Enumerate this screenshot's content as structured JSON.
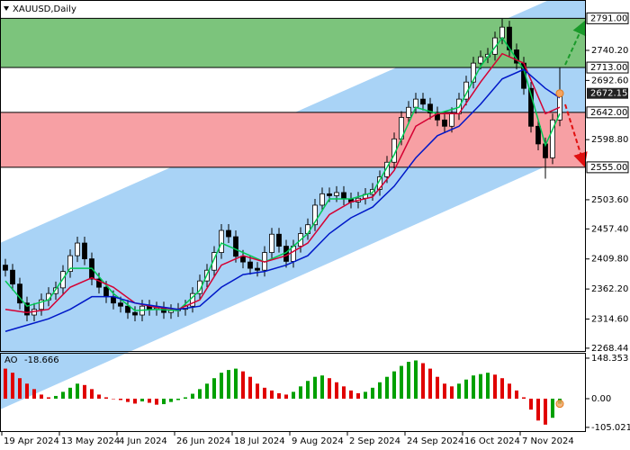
{
  "chart_data": [
    {
      "type": "candlestick",
      "title": "XAUUSD,Daily",
      "open": [
        2400,
        2392,
        2370,
        2340,
        2321,
        2330,
        2345,
        2355,
        2364,
        2390,
        2415,
        2435,
        2410,
        2378,
        2365,
        2350,
        2340,
        2335,
        2325,
        2321,
        2335,
        2330,
        2332,
        2325,
        2328,
        2330,
        2335,
        2355,
        2375,
        2392,
        2420,
        2455,
        2445,
        2414,
        2405,
        2395,
        2392,
        2420,
        2449,
        2430,
        2406,
        2430,
        2450,
        2464,
        2495,
        2513,
        2510,
        2515,
        2505,
        2500,
        2506,
        2512,
        2520,
        2540,
        2563,
        2600,
        2634,
        2650,
        2663,
        2655,
        2641,
        2630,
        2620,
        2640,
        2663,
        2690,
        2720,
        2730,
        2734,
        2760,
        2777,
        2741,
        2720,
        2680,
        2620,
        2592,
        2570,
        2630
      ],
      "high": [
        2410,
        2402,
        2380,
        2350,
        2340,
        2355,
        2365,
        2374,
        2400,
        2425,
        2445,
        2445,
        2420,
        2388,
        2375,
        2360,
        2350,
        2345,
        2335,
        2345,
        2345,
        2342,
        2342,
        2338,
        2340,
        2345,
        2365,
        2385,
        2402,
        2430,
        2465,
        2465,
        2455,
        2424,
        2415,
        2405,
        2430,
        2459,
        2459,
        2440,
        2440,
        2460,
        2474,
        2505,
        2523,
        2523,
        2525,
        2525,
        2515,
        2516,
        2522,
        2530,
        2550,
        2573,
        2610,
        2644,
        2660,
        2673,
        2673,
        2665,
        2651,
        2640,
        2650,
        2673,
        2700,
        2730,
        2740,
        2744,
        2770,
        2790,
        2787,
        2751,
        2730,
        2690,
        2630,
        2602,
        2640,
        2713
      ],
      "low": [
        2382,
        2360,
        2330,
        2311,
        2311,
        2320,
        2335,
        2345,
        2354,
        2380,
        2405,
        2400,
        2368,
        2355,
        2340,
        2330,
        2325,
        2315,
        2311,
        2311,
        2320,
        2320,
        2315,
        2315,
        2318,
        2320,
        2325,
        2345,
        2365,
        2382,
        2410,
        2435,
        2404,
        2395,
        2385,
        2382,
        2382,
        2410,
        2420,
        2396,
        2396,
        2420,
        2440,
        2454,
        2485,
        2500,
        2500,
        2495,
        2490,
        2490,
        2496,
        2502,
        2510,
        2530,
        2553,
        2590,
        2624,
        2640,
        2645,
        2631,
        2620,
        2610,
        2610,
        2630,
        2653,
        2680,
        2710,
        2720,
        2724,
        2750,
        2731,
        2710,
        2670,
        2610,
        2582,
        2537,
        2560,
        2620
      ],
      "close": [
        2392,
        2370,
        2340,
        2321,
        2330,
        2345,
        2355,
        2364,
        2390,
        2415,
        2435,
        2410,
        2378,
        2365,
        2350,
        2340,
        2335,
        2325,
        2321,
        2335,
        2330,
        2332,
        2325,
        2328,
        2330,
        2335,
        2355,
        2375,
        2392,
        2420,
        2455,
        2445,
        2414,
        2405,
        2395,
        2392,
        2420,
        2449,
        2430,
        2406,
        2430,
        2450,
        2464,
        2495,
        2513,
        2510,
        2515,
        2505,
        2500,
        2506,
        2512,
        2520,
        2540,
        2563,
        2600,
        2634,
        2650,
        2663,
        2655,
        2641,
        2630,
        2620,
        2640,
        2663,
        2690,
        2720,
        2730,
        2734,
        2760,
        2777,
        2741,
        2720,
        2680,
        2620,
        2592,
        2570,
        2630,
        2672.15
      ],
      "series": [
        {
          "color": "#00c853",
          "x": [
            0,
            3,
            6,
            9,
            12,
            15,
            18,
            21,
            24,
            27,
            30,
            33,
            36,
            39,
            42,
            45,
            48,
            51,
            54,
            57,
            60,
            63,
            66,
            69,
            72,
            75,
            77
          ],
          "values": [
            2375,
            2335,
            2345,
            2395,
            2395,
            2355,
            2328,
            2330,
            2328,
            2360,
            2435,
            2420,
            2405,
            2420,
            2450,
            2505,
            2505,
            2515,
            2575,
            2650,
            2640,
            2650,
            2715,
            2760,
            2710,
            2590,
            2640
          ]
        },
        {
          "color": "#d50032",
          "x": [
            0,
            3,
            6,
            9,
            12,
            15,
            18,
            21,
            24,
            27,
            30,
            33,
            36,
            39,
            42,
            45,
            48,
            51,
            54,
            57,
            60,
            63,
            66,
            69,
            72,
            75,
            77
          ],
          "values": [
            2330,
            2325,
            2330,
            2365,
            2380,
            2365,
            2340,
            2333,
            2330,
            2345,
            2400,
            2415,
            2405,
            2415,
            2435,
            2480,
            2500,
            2508,
            2550,
            2620,
            2640,
            2640,
            2690,
            2735,
            2720,
            2640,
            2650
          ]
        },
        {
          "color": "#0018c8",
          "x": [
            0,
            3,
            6,
            9,
            12,
            15,
            18,
            21,
            24,
            27,
            30,
            33,
            36,
            39,
            42,
            45,
            48,
            51,
            54,
            57,
            60,
            63,
            66,
            69,
            72,
            75,
            77
          ],
          "values": [
            2295,
            2305,
            2315,
            2330,
            2350,
            2350,
            2340,
            2335,
            2330,
            2335,
            2365,
            2385,
            2390,
            2400,
            2415,
            2450,
            2475,
            2492,
            2525,
            2570,
            2605,
            2620,
            2655,
            2695,
            2710,
            2680,
            2665
          ]
        }
      ],
      "xticks": [
        {
          "value": 0,
          "label": "19 Apr 2024"
        },
        {
          "value": 8,
          "label": "13 May 2024"
        },
        {
          "value": 16,
          "label": "4 Jun 2024"
        },
        {
          "value": 24,
          "label": "26 Jun 2024"
        },
        {
          "value": 32,
          "label": "18 Jul 2024"
        },
        {
          "value": 40,
          "label": "9 Aug 2024"
        },
        {
          "value": 48,
          "label": "2 Sep 2024"
        },
        {
          "value": 56,
          "label": "24 Sep 2024"
        },
        {
          "value": 64,
          "label": "16 Oct 2024"
        },
        {
          "value": 72,
          "label": "7 Nov 2024"
        }
      ],
      "ylim": [
        2264,
        2820
      ],
      "yticks": [
        {
          "value": 2740.2,
          "label": "2740.20"
        },
        {
          "value": 2692.6,
          "label": "2692.60"
        },
        {
          "value": 2598.8,
          "label": "2598.80"
        },
        {
          "value": 2503.6,
          "label": "2503.60"
        },
        {
          "value": 2457.4,
          "label": "2457.40"
        },
        {
          "value": 2409.8,
          "label": "2409.80"
        },
        {
          "value": 2362.2,
          "label": "2362.20"
        },
        {
          "value": 2314.6,
          "label": "2314.60"
        },
        2268.44
      ],
      "levels": [
        {
          "value": 2791,
          "label": "2791.00"
        },
        {
          "value": 2713,
          "label": "2713.00"
        },
        {
          "value": 2642,
          "label": "2642.00"
        },
        {
          "value": 2555,
          "label": "2555.00"
        }
      ],
      "current_price": 2672.15,
      "zones": [
        {
          "from": 2713,
          "to": 2791,
          "color": "#7cc47c"
        },
        {
          "from": 2555,
          "to": 2642,
          "color": "#f7a0a4"
        }
      ]
    },
    {
      "type": "bar",
      "series": [
        {
          "name": "AO",
          "up_color": "#00a000",
          "down_color": "#e00000",
          "values": [
            110,
            95,
            75,
            55,
            35,
            15,
            5,
            10,
            25,
            40,
            55,
            50,
            35,
            15,
            5,
            0,
            -5,
            -12,
            -18,
            -10,
            -15,
            -22,
            -20,
            -12,
            -5,
            5,
            18,
            35,
            55,
            75,
            95,
            105,
            110,
            100,
            80,
            55,
            40,
            30,
            20,
            15,
            25,
            45,
            65,
            80,
            85,
            75,
            60,
            45,
            30,
            20,
            25,
            40,
            60,
            80,
            100,
            120,
            135,
            140,
            130,
            110,
            80,
            55,
            45,
            55,
            70,
            85,
            90,
            95,
            88,
            75,
            55,
            30,
            5,
            -40,
            -80,
            -95,
            -70,
            -18.666
          ]
        }
      ],
      "ylim": [
        -122,
        168
      ],
      "yticks": [
        148.353,
        {
          "value": 0,
          "label": "0.00"
        },
        -105.021
      ]
    }
  ]
}
